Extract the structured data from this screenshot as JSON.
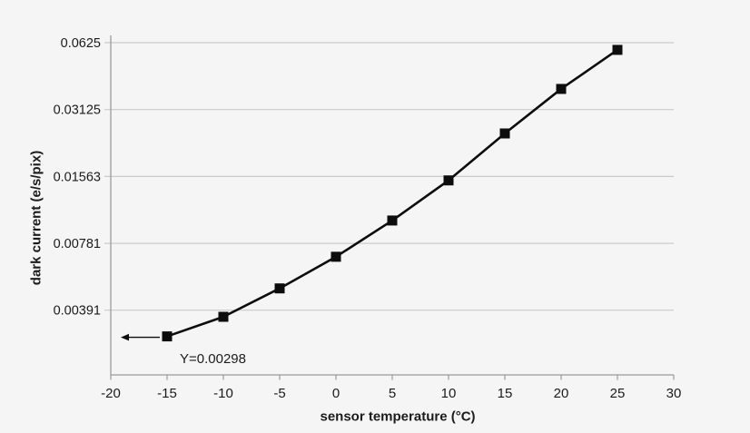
{
  "page": {
    "background": "#f5f5f5"
  },
  "chart_data": {
    "type": "line",
    "title": "",
    "xlabel": "sensor temperature (°C)",
    "ylabel": "dark current (e/s/pix)",
    "series": [
      {
        "name": "dark current",
        "x": [
          -15,
          -10,
          -5,
          0,
          5,
          10,
          15,
          20,
          25
        ],
        "y": [
          0.00298,
          0.00365,
          0.0049,
          0.0068,
          0.0099,
          0.015,
          0.0244,
          0.0387,
          0.058
        ]
      }
    ],
    "x_tick_labels": [
      "-20",
      "-15",
      "-10",
      "-5",
      "0",
      "5",
      "10",
      "15",
      "20",
      "25",
      "30"
    ],
    "y_tick_labels": [
      "0.0625",
      "0.03125",
      "0.01563",
      "0.00781",
      "0.00391"
    ],
    "x_range": [
      -20,
      30
    ],
    "y_scale": "log2",
    "y_top_value": 0.0625,
    "grid": "horizontal",
    "legend": "none",
    "marker": "square",
    "annotation": {
      "text": "Y=0.00298",
      "at_x": -15,
      "at_y": 0.00298,
      "arrow": "left"
    },
    "colors": {
      "line": "#0d0d0d",
      "marker": "#0d0d0d",
      "grid": "#cbcbcb",
      "axis": "#9a9a9a",
      "text": "#1b1b1b",
      "background": "#f5f5f5"
    }
  }
}
